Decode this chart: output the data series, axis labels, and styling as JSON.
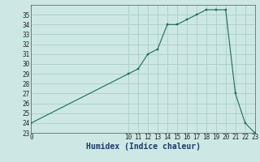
{
  "xlabel": "Humidex (Indice chaleur)",
  "x_hours": [
    0,
    10,
    11,
    12,
    13,
    14,
    15,
    16,
    17,
    18,
    19,
    20,
    21,
    22,
    23
  ],
  "y_values": [
    24,
    29,
    29.5,
    31,
    31.5,
    34,
    34,
    34.5,
    35,
    35.5,
    35.5,
    35.5,
    27,
    24,
    23
  ],
  "line_color": "#1a6b5a",
  "marker_color": "#1a6b5a",
  "bg_color": "#cde8e4",
  "grid_minor_color": "#b0d4cf",
  "grid_major_color": "#9bbfba",
  "ylim": [
    23,
    36
  ],
  "xlim": [
    0,
    23
  ],
  "yticks": [
    23,
    24,
    25,
    26,
    27,
    28,
    29,
    30,
    31,
    32,
    33,
    34,
    35
  ],
  "xticks": [
    0,
    10,
    11,
    12,
    13,
    14,
    15,
    16,
    17,
    18,
    19,
    20,
    21,
    22,
    23
  ],
  "xlabel_fontsize": 7,
  "tick_fontsize": 5.5
}
